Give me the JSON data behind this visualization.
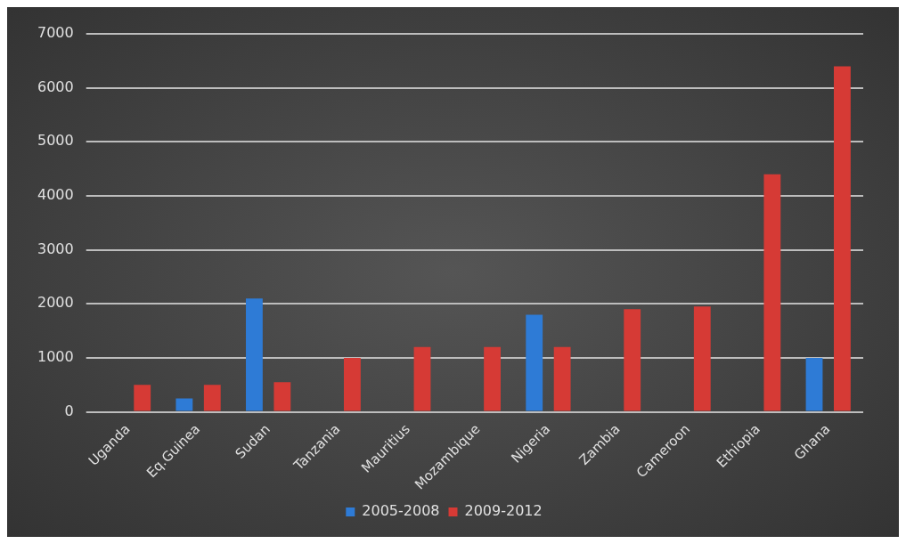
{
  "chart_data": {
    "type": "bar",
    "categories": [
      "Uganda",
      "Eq.Guinea",
      "Sudan",
      "Tanzania",
      "Mauritius",
      "Mozambique",
      "Nigeria",
      "Zambia",
      "Cameroon",
      "Ethiopia",
      "Ghana"
    ],
    "series": [
      {
        "name": "2005-2008",
        "color": "#2e7bd6",
        "values": [
          0,
          250,
          2100,
          0,
          0,
          0,
          1800,
          0,
          0,
          0,
          1000
        ]
      },
      {
        "name": "2009-2012",
        "color": "#d63a35",
        "values": [
          500,
          500,
          550,
          1000,
          1200,
          1200,
          1200,
          1900,
          1950,
          4400,
          6400
        ]
      }
    ],
    "ylim": [
      0,
      7000
    ],
    "yticks": [
      0,
      1000,
      2000,
      3000,
      4000,
      5000,
      6000,
      7000
    ],
    "grid": "y",
    "legend": "bottom"
  }
}
